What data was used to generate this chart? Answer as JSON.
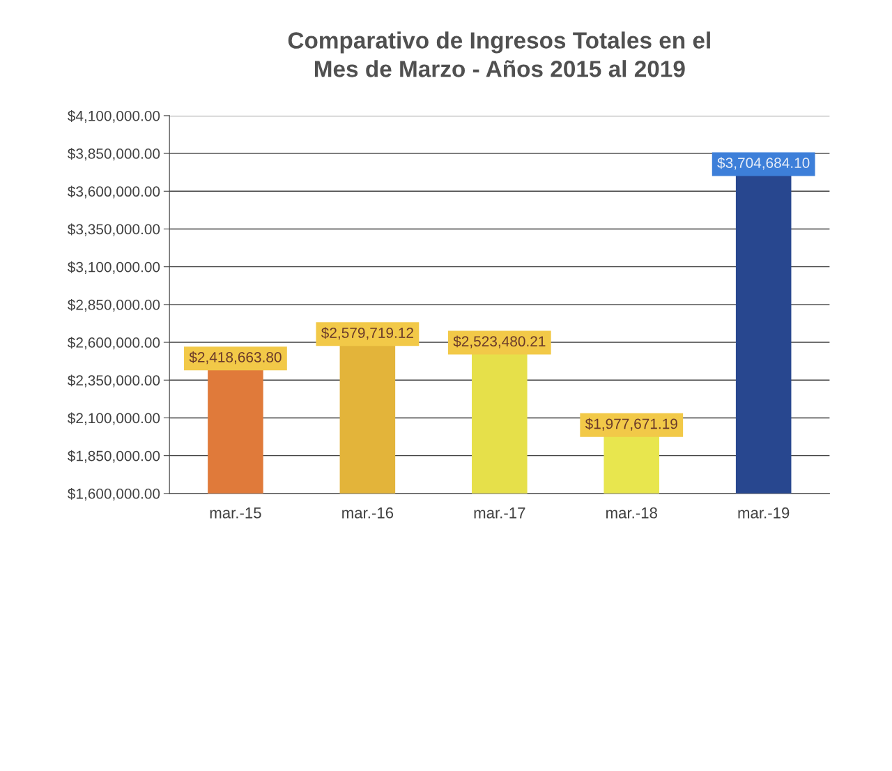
{
  "chart_data": {
    "type": "bar",
    "title": "Comparativo de Ingresos Totales en el\nMes de Marzo - Años 2015 al 2019",
    "categories": [
      "mar.-15",
      "mar.-16",
      "mar.-17",
      "mar.-18",
      "mar.-19"
    ],
    "values": [
      2418663.8,
      2579719.12,
      2523480.21,
      1977671.19,
      3704684.1
    ],
    "value_labels": [
      "$2,418,663.80",
      "$2,579,719.12",
      "$2,523,480.21",
      "$1,977,671.19",
      "$3,704,684.10"
    ],
    "colors": [
      "#e07a3a",
      "#e3b43a",
      "#e6e04a",
      "#e8e64e",
      "#28478f"
    ],
    "ylim": [
      1600000,
      4100000
    ],
    "yticks": [
      {
        "value": 1600000,
        "label": "$1,600,000.00"
      },
      {
        "value": 1850000,
        "label": "$1,850,000.00"
      },
      {
        "value": 2100000,
        "label": "$2,100,000.00"
      },
      {
        "value": 2350000,
        "label": "$2,350,000.00"
      },
      {
        "value": 2600000,
        "label": "$2,600,000.00"
      },
      {
        "value": 2850000,
        "label": "$2,850,000.00"
      },
      {
        "value": 3100000,
        "label": "$3,100,000.00"
      },
      {
        "value": 3350000,
        "label": "$3,350,000.00"
      },
      {
        "value": 3600000,
        "label": "$3,600,000.00"
      },
      {
        "value": 3850000,
        "label": "$3,850,000.00"
      },
      {
        "value": 4100000,
        "label": "$4,100,000.00"
      }
    ],
    "grid": "y"
  }
}
